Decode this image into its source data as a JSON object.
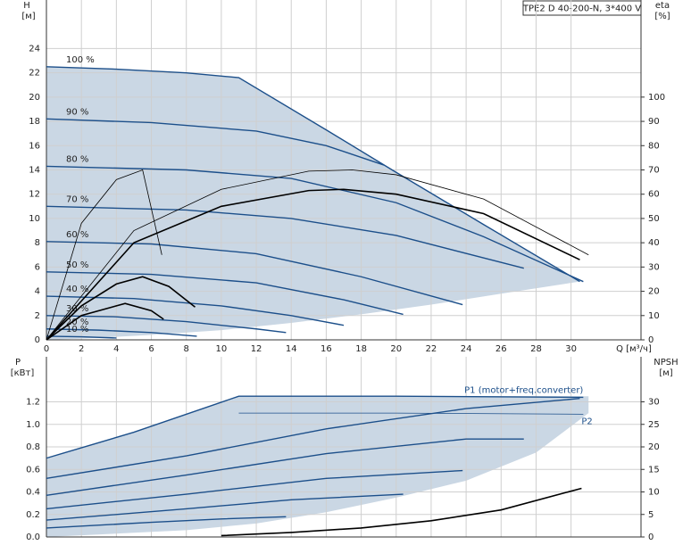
{
  "chart_data": [
    {
      "type": "line",
      "title": "TPE2 D 40-200-N, 3*400 V",
      "y_label": "H",
      "y_unit": "[м]",
      "y2_label": "eta",
      "y2_unit": "[%]",
      "x_label": "Q [м³/ч]",
      "xlim": [
        0,
        34
      ],
      "xticks": [
        0,
        2,
        4,
        6,
        8,
        10,
        12,
        14,
        16,
        18,
        20,
        22,
        24,
        26,
        28,
        30
      ],
      "ylim": [
        0,
        28
      ],
      "yticks": [
        0,
        2,
        4,
        6,
        8,
        10,
        12,
        14,
        16,
        18,
        20,
        22,
        24
      ],
      "y2lim": [
        0,
        140
      ],
      "y2ticks": [
        0,
        10,
        20,
        30,
        40,
        50,
        60,
        70,
        80,
        90,
        100
      ],
      "grid": true,
      "area": {
        "color": "#cad7e4",
        "x": [
          0,
          4,
          8,
          11,
          30.5,
          26,
          22,
          18,
          14,
          10,
          6,
          2,
          0
        ],
        "values": [
          22.5,
          22.3,
          22,
          21.6,
          4.8,
          3.8,
          2.9,
          2.1,
          1.4,
          0.8,
          0.4,
          0.1,
          0
        ]
      },
      "series": [
        {
          "name": "100 %",
          "color": "#1c4f8a",
          "line_width": 1.4,
          "x": [
            0,
            4,
            8,
            11,
            16,
            20,
            25,
            30.5
          ],
          "values": [
            22.5,
            22.3,
            22,
            21.6,
            17.3,
            13.8,
            9.5,
            4.8
          ]
        },
        {
          "name": "90 %",
          "color": "#1c4f8a",
          "line_width": 1.4,
          "x": [
            0,
            6,
            12,
            16,
            19.3
          ],
          "values": [
            18.2,
            17.9,
            17.2,
            16,
            14.4
          ]
        },
        {
          "name": "80 %",
          "color": "#1c4f8a",
          "line_width": 1.4,
          "x": [
            0,
            8,
            14,
            20,
            25,
            30.7
          ],
          "values": [
            14.3,
            14,
            13.3,
            11.3,
            8.5,
            4.8
          ]
        },
        {
          "name": "70 %",
          "color": "#1c4f8a",
          "line_width": 1.4,
          "x": [
            0,
            8,
            14,
            20,
            27.3
          ],
          "values": [
            11,
            10.7,
            10,
            8.6,
            5.9
          ]
        },
        {
          "name": "60 %",
          "color": "#1c4f8a",
          "line_width": 1.4,
          "x": [
            0,
            6,
            12,
            18,
            23.8
          ],
          "values": [
            8.1,
            7.9,
            7.1,
            5.2,
            2.9
          ]
        },
        {
          "name": "50 %",
          "color": "#1c4f8a",
          "line_width": 1.4,
          "x": [
            0,
            6,
            12,
            17,
            20.4
          ],
          "values": [
            5.6,
            5.4,
            4.7,
            3.3,
            2.1
          ]
        },
        {
          "name": "40 %",
          "color": "#1c4f8a",
          "line_width": 1.4,
          "x": [
            0,
            5,
            10,
            14,
            17
          ],
          "values": [
            3.6,
            3.4,
            2.8,
            2,
            1.2
          ]
        },
        {
          "name": "30 %",
          "color": "#1c4f8a",
          "line_width": 1.4,
          "x": [
            0,
            4,
            8,
            12,
            13.7
          ],
          "values": [
            2,
            1.9,
            1.5,
            0.9,
            0.6
          ]
        },
        {
          "name": "20 %",
          "color": "#1c4f8a",
          "line_width": 1.4,
          "x": [
            0,
            3,
            6,
            8.6
          ],
          "values": [
            0.9,
            0.8,
            0.6,
            0.3
          ]
        },
        {
          "name": "10 %",
          "color": "#1c4f8a",
          "line_width": 1.4,
          "x": [
            0,
            2,
            4
          ],
          "values": [
            0.3,
            0.25,
            0.15
          ]
        },
        {
          "axis": "y2",
          "color": "#000000",
          "line_width": 0.8,
          "x": [
            0,
            5,
            10,
            15,
            17.5,
            20,
            25,
            31
          ],
          "values": [
            0,
            45,
            62,
            69.5,
            70,
            68,
            58,
            35
          ]
        },
        {
          "axis": "y2",
          "color": "#000000",
          "line_width": 1.6,
          "x": [
            0,
            5,
            10,
            15,
            17,
            20,
            25,
            30.5
          ],
          "values": [
            0,
            40,
            55,
            61.5,
            62,
            60,
            52,
            33
          ]
        },
        {
          "axis": "y2",
          "color": "#000000",
          "line_width": 0.8,
          "x": [
            0,
            2,
            4,
            5.5,
            6.6
          ],
          "values": [
            0,
            48,
            66,
            70,
            35
          ]
        },
        {
          "axis": "y2",
          "color": "#000000",
          "line_width": 1.6,
          "x": [
            0,
            2,
            4,
            5.5,
            7,
            8.5
          ],
          "values": [
            0,
            14,
            23,
            26,
            22,
            13.5
          ]
        },
        {
          "axis": "y2",
          "color": "#000000",
          "line_width": 1.6,
          "x": [
            0,
            2,
            4.5,
            6,
            6.7
          ],
          "values": [
            0,
            10,
            15,
            12,
            8.5
          ]
        }
      ]
    },
    {
      "type": "line",
      "y_label": "P",
      "y_unit": "[кВт]",
      "y2_label": "NPSH",
      "y2_unit": "[м]",
      "xlim": [
        0,
        34
      ],
      "xticks": [
        0,
        2,
        4,
        6,
        8,
        10,
        12,
        14,
        16,
        18,
        20,
        22,
        24,
        26,
        28,
        30
      ],
      "ylim": [
        0,
        1.6
      ],
      "yticks": [
        {
          "value": 0,
          "label": "0.0"
        },
        0.2,
        0.4,
        0.6,
        0.8,
        {
          "value": 1,
          "label": "1.0"
        },
        1.2
      ],
      "y2lim": [
        0,
        40
      ],
      "y2ticks": [
        0,
        5,
        10,
        15,
        20,
        25,
        30
      ],
      "grid": true,
      "area": {
        "color": "#cad7e4",
        "x": [
          0,
          5,
          11,
          31,
          31,
          28,
          24,
          20,
          16,
          12,
          8,
          0
        ],
        "values": [
          0.7,
          0.93,
          1.25,
          1.25,
          1.1,
          0.75,
          0.5,
          0.35,
          0.22,
          0.12,
          0.06,
          0
        ]
      },
      "series": [
        {
          "name": "P1 (motor+freq.converter)",
          "color": "#1c4f8a",
          "line_width": 1.4,
          "x": [
            0,
            5,
            11,
            20,
            30.7
          ],
          "values": [
            0.7,
            0.93,
            1.25,
            1.25,
            1.24
          ]
        },
        {
          "name": "P2",
          "color": "#1c4f8a",
          "line_width": 0.8,
          "x": [
            11,
            20,
            30.7
          ],
          "values": [
            1.1,
            1.1,
            1.09
          ]
        },
        {
          "color": "#1c4f8a",
          "line_width": 1.4,
          "x": [
            0,
            8,
            16,
            24,
            30.5
          ],
          "values": [
            0.52,
            0.72,
            0.96,
            1.14,
            1.23
          ]
        },
        {
          "color": "#1c4f8a",
          "line_width": 1.4,
          "x": [
            0,
            8,
            16,
            24,
            27.3
          ],
          "values": [
            0.37,
            0.55,
            0.74,
            0.87,
            0.87
          ]
        },
        {
          "color": "#1c4f8a",
          "line_width": 1.4,
          "x": [
            0,
            8,
            16,
            23.8
          ],
          "values": [
            0.25,
            0.38,
            0.52,
            0.59
          ]
        },
        {
          "color": "#1c4f8a",
          "line_width": 1.4,
          "x": [
            0,
            8,
            14,
            20.4
          ],
          "values": [
            0.15,
            0.25,
            0.33,
            0.38
          ]
        },
        {
          "color": "#1c4f8a",
          "line_width": 1.4,
          "x": [
            0,
            6,
            10,
            13.7
          ],
          "values": [
            0.08,
            0.13,
            0.16,
            0.18
          ]
        },
        {
          "axis": "y2",
          "color": "#000000",
          "line_width": 1.6,
          "x": [
            10,
            14,
            18,
            22,
            26,
            30.6
          ],
          "values": [
            0.3,
            1,
            2,
            3.6,
            6,
            10.8
          ]
        }
      ]
    }
  ]
}
